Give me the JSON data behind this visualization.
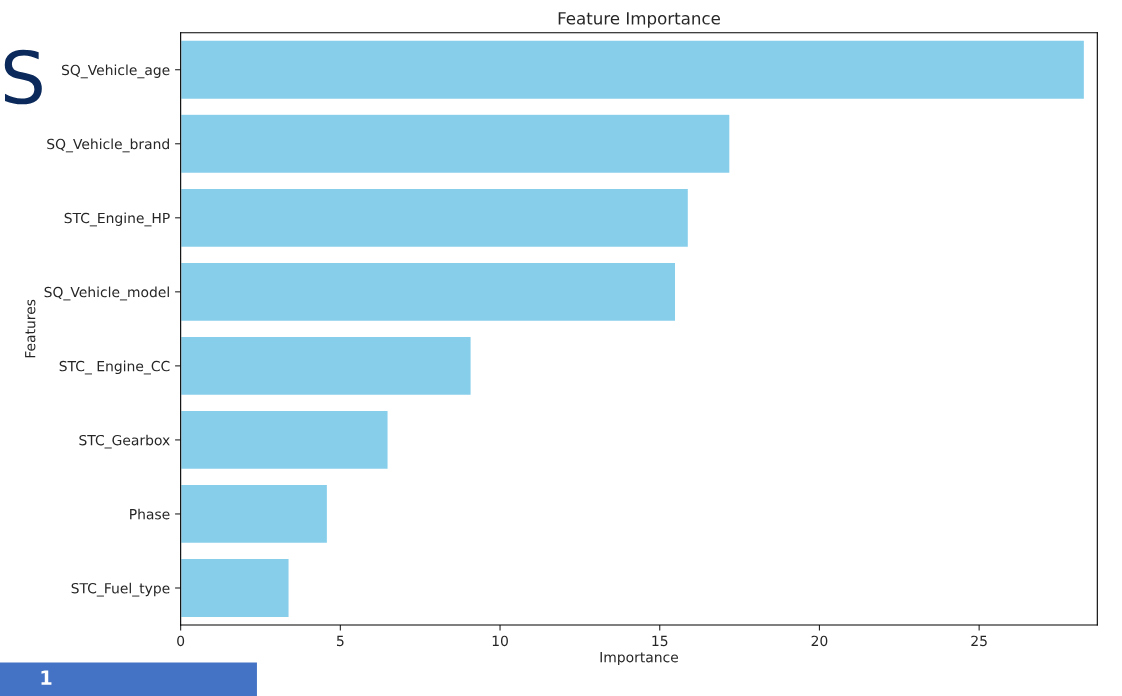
{
  "chart_data": {
    "type": "bar",
    "orientation": "horizontal",
    "title": "Feature Importance",
    "xlabel": "Importance",
    "ylabel": "Features",
    "categories": [
      "SQ_Vehicle_age",
      "SQ_Vehicle_brand",
      "STC_Engine_HP",
      "SQ_Vehicle_model",
      "STC_ Engine_CC",
      "STC_Gearbox",
      "Phase",
      "STC_Fuel_type"
    ],
    "values": [
      28.3,
      17.2,
      15.9,
      15.5,
      9.1,
      6.5,
      4.6,
      3.4
    ],
    "color": "#87ceeb",
    "xlim": [
      0,
      28.7
    ],
    "xticks": [
      0,
      5,
      10,
      15,
      20,
      25
    ],
    "grid": false,
    "annotations": [
      "S",
      "1"
    ]
  }
}
